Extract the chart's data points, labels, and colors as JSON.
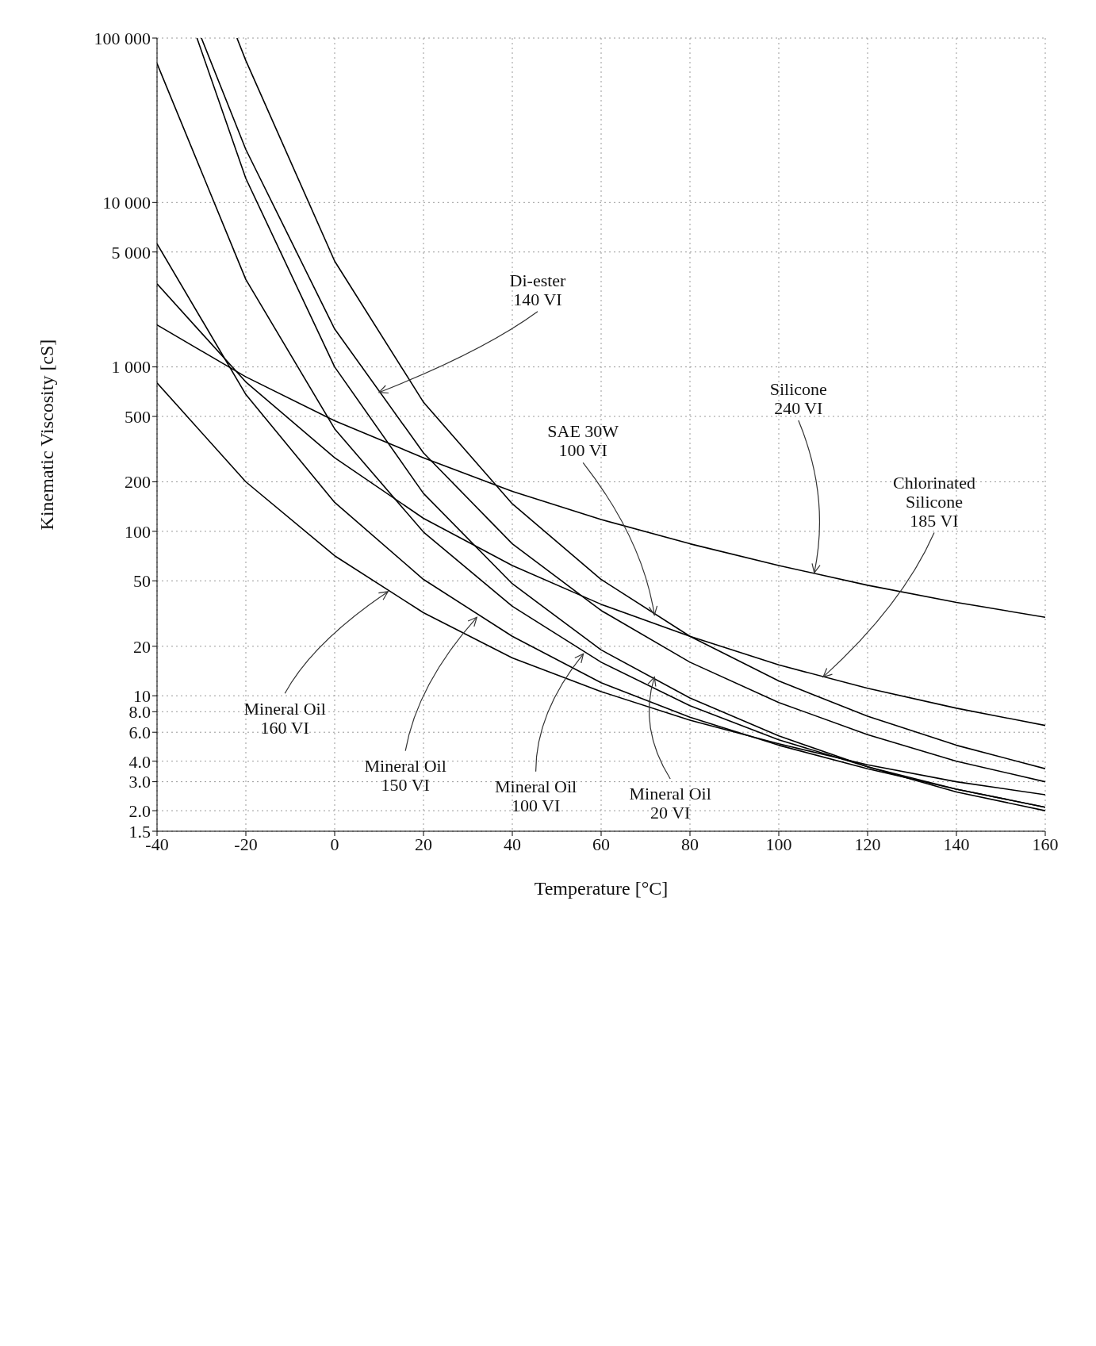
{
  "chart_data": {
    "type": "line",
    "xlabel": "Temperature [°C]",
    "ylabel": "Kinematic Viscosity [cS]",
    "xlim": [
      -40,
      160
    ],
    "xticks": [
      -40,
      -20,
      0,
      20,
      40,
      60,
      80,
      100,
      120,
      140,
      160
    ],
    "ylim": [
      1.5,
      100000
    ],
    "yticks": [
      1.5,
      {
        "value": 2,
        "label": "2.0"
      },
      {
        "value": 3,
        "label": "3.0"
      },
      {
        "value": 4,
        "label": "4.0"
      },
      {
        "value": 6,
        "label": "6.0"
      },
      {
        "value": 8,
        "label": "8.0"
      },
      10,
      20,
      50,
      100,
      200,
      500,
      {
        "value": 1000,
        "label": "1 000"
      },
      {
        "value": 5000,
        "label": "5 000"
      },
      {
        "value": 10000,
        "label": "10 000"
      },
      {
        "value": 100000,
        "label": "100 000"
      }
    ],
    "log": "y",
    "grid": true,
    "legend": false,
    "marker": "none",
    "line_style": "solid",
    "series": [
      {
        "color": "#000000",
        "x": [
          -30,
          -20,
          0,
          20,
          40,
          60,
          80,
          100,
          120,
          140,
          160
        ],
        "values": [
          100000,
          21000,
          1700,
          300,
          84,
          33,
          16,
          9.1,
          5.8,
          4.0,
          3.0
        ]
      },
      {
        "color": "#000000",
        "x": [
          -40,
          -20,
          0,
          20,
          40,
          60,
          80,
          100,
          120,
          140,
          160
        ],
        "values": [
          800,
          200,
          71,
          32,
          17,
          10.6,
          7.1,
          5.1,
          3.8,
          3.0,
          2.5
        ]
      },
      {
        "color": "#000000",
        "x": [
          -40,
          -20,
          0,
          20,
          40,
          60,
          80,
          100,
          120,
          140,
          160
        ],
        "values": [
          5600,
          680,
          150,
          51,
          23,
          12,
          7.4,
          5.0,
          3.6,
          2.7,
          2.1
        ]
      },
      {
        "color": "#000000",
        "x": [
          -40,
          -20,
          0,
          20,
          40,
          60,
          80,
          100,
          120,
          140,
          160
        ],
        "values": [
          70000,
          3400,
          420,
          99,
          35,
          16,
          8.7,
          5.4,
          3.7,
          2.7,
          2.1
        ]
      },
      {
        "color": "#000000",
        "x": [
          -31,
          -20,
          0,
          20,
          40,
          60,
          80,
          100,
          120,
          140,
          160
        ],
        "values": [
          100000,
          14000,
          1000,
          170,
          48,
          19,
          9.7,
          5.7,
          3.7,
          2.6,
          2.0
        ]
      },
      {
        "color": "#000000",
        "x": [
          -22,
          -20,
          0,
          20,
          40,
          60,
          80,
          100,
          120,
          140,
          160
        ],
        "values": [
          100000,
          73000,
          4400,
          610,
          147,
          51,
          23,
          12.3,
          7.5,
          5.0,
          3.6
        ]
      },
      {
        "color": "#000000",
        "x": [
          -40,
          -20,
          0,
          20,
          40,
          60,
          80,
          100,
          120,
          140,
          160
        ],
        "values": [
          1800,
          870,
          470,
          280,
          175,
          118,
          84,
          62,
          47,
          37,
          30
        ]
      },
      {
        "color": "#000000",
        "x": [
          -40,
          -20,
          0,
          20,
          40,
          60,
          80,
          100,
          120,
          140,
          160
        ],
        "values": [
          3200,
          810,
          280,
          120,
          62,
          36,
          23,
          15.4,
          11.1,
          8.4,
          6.6
        ]
      }
    ],
    "annotations": [
      {
        "text": "Di-ester\n140 VI",
        "x": 10,
        "y": 700
      },
      {
        "text": "Mineral Oil\n160 VI",
        "x": 12,
        "y": 43
      },
      {
        "text": "Mineral Oil\n150 VI",
        "x": 32,
        "y": 30
      },
      {
        "text": "Mineral Oil\n100 VI",
        "x": 56,
        "y": 18
      },
      {
        "text": "Mineral Oil\n20 VI",
        "x": 72,
        "y": 13
      },
      {
        "text": "SAE 30W\n100 VI",
        "x": 72,
        "y": 31
      },
      {
        "text": "Silicone\n240 VI",
        "x": 108,
        "y": 56
      },
      {
        "text": "Chlorinated\nSilicone\n185 VI",
        "x": 110,
        "y": 13
      }
    ]
  }
}
